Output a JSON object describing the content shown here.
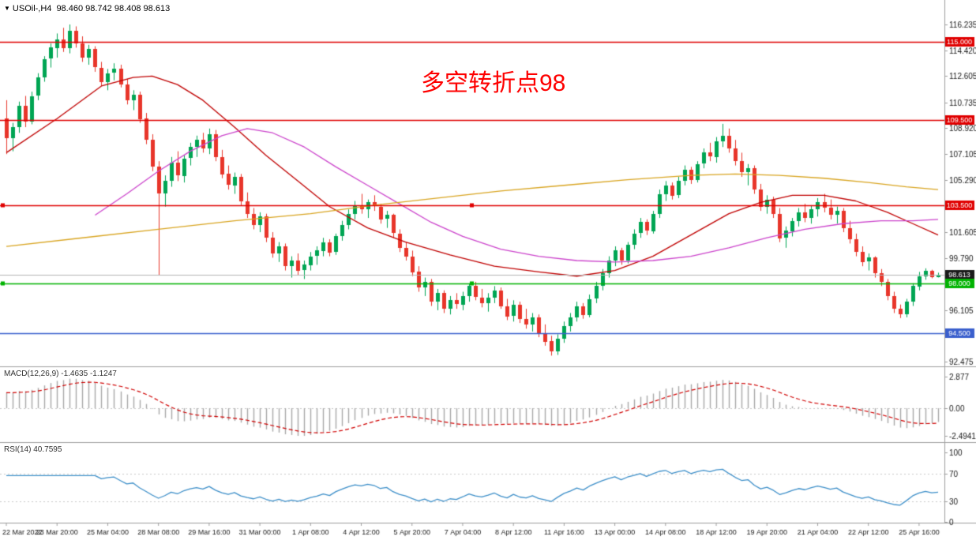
{
  "header": {
    "arrow": "▼",
    "symbol": "USOil-,H4",
    "ohlc": "98.460 98.742 98.408 98.613"
  },
  "annotation": {
    "text": "多空转折点98",
    "color": "#fe0000"
  },
  "indicators": {
    "macd_label": "MACD(12,26,9) -1.4635 -1.1247",
    "rsi_label": "RSI(14) 40.7595"
  },
  "chart_data": {
    "type": "candlestick",
    "symbol": "USOil-",
    "timeframe": "H4",
    "title": "USOil H4 chart with MACD and RSI",
    "ohlc_display": {
      "open": "98.460",
      "high": "98.742",
      "low": "98.408",
      "close": "98.613"
    },
    "price_range": {
      "min": 92.2,
      "max": 117.96
    },
    "macd_range": {
      "min": -2.98,
      "max": 3.63
    },
    "rsi_range": {
      "min": 0,
      "max": 114
    },
    "price_axis": {
      "ticks": [
        116.235,
        114.42,
        112.605,
        110.735,
        108.92,
        107.105,
        105.29,
        101.605,
        99.79,
        96.105,
        92.475
      ],
      "badges": [
        {
          "label": "115.000",
          "price": 115.0,
          "color_key": "hline_red"
        },
        {
          "label": "109.500",
          "price": 109.5,
          "color_key": "hline_red"
        },
        {
          "label": "103.500",
          "price": 103.5,
          "color_key": "hline_red"
        },
        {
          "label": "98.613",
          "price": 98.613,
          "color_key": "last_badge"
        },
        {
          "label": "98.000",
          "price": 98.0,
          "color_key": "hline_green"
        },
        {
          "label": "94.500",
          "price": 94.5,
          "color_key": "hline_blue"
        }
      ]
    },
    "hlines": [
      {
        "price": 115.0,
        "label": "115.000",
        "color_key": "hline_red",
        "anchor": false
      },
      {
        "price": 109.5,
        "label": "109.500",
        "color_key": "hline_red",
        "anchor": false
      },
      {
        "price": 103.5,
        "label": "103.500",
        "color_key": "hline_red",
        "anchor": true
      },
      {
        "price": 98.0,
        "label": "98.000",
        "color_key": "hline_green",
        "anchor": true
      },
      {
        "price": 94.5,
        "label": "94.500",
        "color_key": "hline_blue",
        "anchor": false
      }
    ],
    "bid_line_price": 98.613,
    "x_labels": [
      "22 Mar 2022",
      "23 Mar 20:00",
      "25 Mar 04:00",
      "28 Mar 08:00",
      "29 Mar 16:00",
      "31 Mar 00:00",
      "1 Apr 08:00",
      "4 Apr 12:00",
      "5 Apr 20:00",
      "7 Apr 04:00",
      "8 Apr 12:00",
      "11 Apr 16:00",
      "13 Apr 00:00",
      "14 Apr 08:00",
      "18 Apr 12:00",
      "19 Apr 20:00",
      "21 Apr 04:00",
      "22 Apr 12:00",
      "25 Apr 16:00"
    ],
    "candles": [
      [
        109.6,
        110.9,
        107.1,
        108.2
      ],
      [
        108.2,
        109.3,
        107.3,
        109.0
      ],
      [
        109.0,
        110.8,
        108.6,
        110.5
      ],
      [
        110.5,
        111.2,
        109.0,
        109.4
      ],
      [
        109.4,
        111.5,
        109.2,
        111.2
      ],
      [
        111.2,
        112.8,
        110.9,
        112.5
      ],
      [
        112.5,
        114.0,
        112.2,
        113.8
      ],
      [
        113.8,
        114.9,
        113.2,
        114.6
      ],
      [
        114.6,
        115.6,
        113.9,
        115.2
      ],
      [
        115.2,
        116.0,
        114.3,
        114.6
      ],
      [
        114.6,
        116.235,
        114.2,
        115.8
      ],
      [
        115.8,
        116.1,
        114.6,
        114.9
      ],
      [
        114.9,
        115.4,
        113.6,
        113.9
      ],
      [
        113.9,
        114.8,
        113.4,
        114.5
      ],
      [
        114.5,
        114.7,
        112.9,
        113.2
      ],
      [
        113.2,
        113.6,
        111.9,
        112.2
      ],
      [
        112.2,
        113.1,
        111.6,
        112.8
      ],
      [
        112.8,
        113.5,
        112.3,
        113.1
      ],
      [
        113.1,
        113.4,
        111.8,
        112.0
      ],
      [
        112.0,
        112.4,
        110.6,
        110.9
      ],
      [
        110.9,
        111.6,
        110.2,
        111.3
      ],
      [
        111.3,
        111.5,
        109.3,
        109.6
      ],
      [
        109.6,
        110.0,
        107.8,
        108.1
      ],
      [
        108.1,
        108.5,
        105.9,
        106.2
      ],
      [
        106.2,
        106.6,
        98.6,
        104.3
      ],
      [
        104.3,
        105.6,
        103.4,
        105.2
      ],
      [
        105.2,
        106.9,
        104.8,
        106.5
      ],
      [
        106.5,
        107.3,
        105.2,
        105.6
      ],
      [
        105.6,
        107.0,
        105.1,
        106.8
      ],
      [
        106.8,
        107.9,
        106.3,
        107.6
      ],
      [
        107.6,
        108.4,
        106.9,
        108.1
      ],
      [
        108.1,
        108.6,
        107.2,
        107.5
      ],
      [
        107.5,
        108.9,
        107.1,
        108.5
      ],
      [
        108.5,
        108.8,
        106.6,
        106.9
      ],
      [
        106.9,
        107.4,
        105.4,
        105.7
      ],
      [
        105.7,
        106.3,
        104.6,
        104.9
      ],
      [
        104.9,
        105.8,
        104.3,
        105.5
      ],
      [
        105.5,
        105.7,
        103.5,
        103.8
      ],
      [
        103.8,
        104.4,
        102.6,
        102.9
      ],
      [
        102.9,
        103.3,
        101.8,
        102.1
      ],
      [
        102.1,
        103.0,
        101.6,
        102.7
      ],
      [
        102.7,
        102.9,
        100.9,
        101.2
      ],
      [
        101.2,
        101.6,
        99.8,
        100.1
      ],
      [
        100.1,
        100.9,
        99.5,
        100.6
      ],
      [
        100.6,
        100.8,
        98.9,
        99.2
      ],
      [
        99.2,
        99.9,
        98.4,
        99.6
      ],
      [
        99.6,
        100.1,
        98.6,
        98.9
      ],
      [
        98.9,
        99.6,
        98.3,
        99.3
      ],
      [
        99.3,
        100.2,
        98.9,
        99.9
      ],
      [
        99.9,
        100.6,
        99.3,
        100.3
      ],
      [
        100.3,
        101.2,
        99.9,
        100.9
      ],
      [
        100.9,
        101.1,
        99.9,
        100.2
      ],
      [
        100.2,
        101.5,
        100.0,
        101.3
      ],
      [
        101.3,
        102.4,
        101.0,
        102.1
      ],
      [
        102.1,
        103.2,
        101.8,
        102.9
      ],
      [
        102.9,
        103.8,
        102.5,
        103.5
      ],
      [
        103.5,
        104.3,
        102.9,
        103.2
      ],
      [
        103.2,
        103.9,
        102.6,
        103.7
      ],
      [
        103.7,
        104.2,
        103.1,
        103.4
      ],
      [
        103.4,
        103.6,
        102.2,
        102.5
      ],
      [
        102.5,
        103.1,
        101.9,
        102.8
      ],
      [
        102.8,
        102.9,
        101.2,
        101.5
      ],
      [
        101.5,
        101.8,
        100.2,
        100.5
      ],
      [
        100.5,
        100.9,
        99.6,
        99.9
      ],
      [
        99.9,
        100.3,
        98.5,
        98.8
      ],
      [
        98.8,
        99.2,
        97.4,
        97.7
      ],
      [
        97.7,
        98.4,
        97.1,
        98.1
      ],
      [
        98.1,
        98.3,
        96.4,
        96.7
      ],
      [
        96.7,
        97.6,
        96.1,
        97.3
      ],
      [
        97.3,
        97.5,
        95.9,
        96.2
      ],
      [
        96.2,
        97.1,
        95.8,
        96.8
      ],
      [
        96.8,
        97.3,
        96.2,
        96.5
      ],
      [
        96.5,
        97.4,
        96.1,
        97.1
      ],
      [
        97.1,
        98.0,
        96.7,
        97.8
      ],
      [
        97.8,
        98.1,
        96.8,
        97.0
      ],
      [
        97.0,
        97.6,
        96.3,
        96.6
      ],
      [
        96.6,
        97.3,
        96.0,
        97.0
      ],
      [
        97.0,
        97.8,
        96.6,
        97.5
      ],
      [
        97.5,
        97.7,
        96.2,
        96.4
      ],
      [
        96.4,
        96.9,
        95.4,
        95.7
      ],
      [
        95.7,
        96.8,
        95.3,
        96.5
      ],
      [
        96.5,
        96.7,
        95.2,
        95.5
      ],
      [
        95.5,
        96.2,
        94.8,
        95.1
      ],
      [
        95.1,
        95.9,
        94.6,
        95.6
      ],
      [
        95.6,
        95.8,
        94.2,
        94.5
      ],
      [
        94.5,
        95.1,
        93.6,
        93.9
      ],
      [
        93.9,
        94.3,
        92.9,
        93.2
      ],
      [
        93.2,
        94.4,
        92.95,
        94.1
      ],
      [
        94.1,
        95.3,
        93.8,
        95.0
      ],
      [
        95.0,
        95.9,
        94.6,
        95.6
      ],
      [
        95.6,
        96.7,
        95.3,
        96.4
      ],
      [
        96.4,
        96.6,
        95.5,
        95.8
      ],
      [
        95.8,
        97.2,
        95.6,
        96.9
      ],
      [
        96.9,
        98.1,
        96.6,
        97.8
      ],
      [
        97.8,
        99.0,
        97.5,
        98.7
      ],
      [
        98.7,
        99.9,
        98.4,
        99.6
      ],
      [
        99.6,
        100.6,
        99.2,
        100.3
      ],
      [
        100.3,
        100.5,
        99.3,
        99.6
      ],
      [
        99.6,
        100.9,
        99.4,
        100.7
      ],
      [
        100.7,
        101.8,
        100.4,
        101.5
      ],
      [
        101.5,
        102.6,
        101.2,
        102.3
      ],
      [
        102.3,
        102.5,
        101.4,
        101.7
      ],
      [
        101.7,
        103.1,
        101.5,
        102.9
      ],
      [
        102.9,
        104.6,
        102.6,
        104.3
      ],
      [
        104.3,
        105.2,
        103.8,
        104.9
      ],
      [
        104.9,
        105.1,
        103.9,
        104.2
      ],
      [
        104.2,
        105.5,
        104.0,
        105.2
      ],
      [
        105.2,
        106.3,
        104.9,
        106.0
      ],
      [
        106.0,
        106.2,
        105.0,
        105.3
      ],
      [
        105.3,
        106.6,
        105.1,
        106.4
      ],
      [
        106.4,
        107.5,
        106.1,
        107.2
      ],
      [
        107.2,
        107.9,
        106.6,
        106.9
      ],
      [
        106.9,
        108.3,
        106.5,
        108.0
      ],
      [
        108.0,
        109.23,
        107.6,
        108.4
      ],
      [
        108.4,
        108.9,
        107.2,
        107.5
      ],
      [
        107.5,
        108.1,
        106.3,
        106.6
      ],
      [
        106.6,
        107.2,
        105.5,
        105.8
      ],
      [
        105.8,
        106.4,
        104.9,
        106.1
      ],
      [
        106.1,
        106.3,
        104.3,
        104.6
      ],
      [
        104.6,
        105.0,
        103.1,
        103.4
      ],
      [
        103.4,
        104.2,
        102.9,
        103.9
      ],
      [
        103.9,
        104.1,
        102.6,
        102.9
      ],
      [
        102.9,
        103.3,
        100.9,
        101.2
      ],
      [
        101.2,
        102.0,
        100.5,
        101.7
      ],
      [
        101.7,
        102.6,
        101.3,
        102.4
      ],
      [
        102.4,
        103.3,
        102.0,
        103.0
      ],
      [
        103.0,
        103.6,
        102.3,
        102.6
      ],
      [
        102.6,
        103.5,
        102.2,
        103.2
      ],
      [
        103.2,
        104.0,
        102.7,
        103.7
      ],
      [
        103.7,
        104.3,
        103.0,
        103.3
      ],
      [
        103.3,
        103.9,
        102.5,
        102.8
      ],
      [
        102.8,
        103.4,
        102.2,
        103.1
      ],
      [
        103.1,
        103.3,
        101.6,
        101.9
      ],
      [
        101.9,
        102.4,
        100.8,
        101.1
      ],
      [
        101.1,
        101.5,
        99.9,
        100.2
      ],
      [
        100.2,
        100.6,
        99.2,
        99.5
      ],
      [
        99.5,
        100.1,
        98.9,
        99.8
      ],
      [
        99.8,
        99.9,
        98.4,
        98.7
      ],
      [
        98.7,
        99.0,
        97.8,
        98.1
      ],
      [
        98.1,
        98.3,
        96.8,
        97.1
      ],
      [
        97.1,
        97.4,
        95.9,
        96.2
      ],
      [
        96.2,
        96.5,
        95.55,
        95.8
      ],
      [
        95.8,
        96.9,
        95.6,
        96.7
      ],
      [
        96.7,
        98.0,
        96.4,
        97.8
      ],
      [
        97.8,
        98.8,
        97.5,
        98.5
      ],
      [
        98.5,
        99.05,
        98.25,
        98.9
      ],
      [
        98.9,
        98.95,
        98.35,
        98.46
      ],
      [
        98.46,
        98.742,
        98.408,
        98.613
      ]
    ],
    "ma_lines": [
      {
        "name": "ma-fast-red",
        "color_key": "ma_fast",
        "points": [
          [
            0,
            107.2
          ],
          [
            8,
            109.6
          ],
          [
            15,
            111.9
          ],
          [
            20,
            112.5
          ],
          [
            23,
            112.6
          ],
          [
            27,
            112.0
          ],
          [
            31,
            110.9
          ],
          [
            36,
            109.0
          ],
          [
            41,
            107.0
          ],
          [
            46,
            105.2
          ],
          [
            51,
            103.4
          ],
          [
            57,
            101.9
          ],
          [
            63,
            100.9
          ],
          [
            70,
            100.0
          ],
          [
            77,
            99.2
          ],
          [
            84,
            98.8
          ],
          [
            90,
            98.5
          ],
          [
            96,
            98.9
          ],
          [
            102,
            99.9
          ],
          [
            108,
            101.4
          ],
          [
            114,
            102.9
          ],
          [
            119,
            103.7
          ],
          [
            124,
            104.2
          ],
          [
            129,
            104.2
          ],
          [
            134,
            103.8
          ],
          [
            139,
            103.0
          ],
          [
            143,
            102.2
          ],
          [
            147,
            101.4
          ]
        ]
      },
      {
        "name": "ma-mid-magenta",
        "color_key": "ma_mid",
        "points": [
          [
            14,
            102.8
          ],
          [
            19,
            104.3
          ],
          [
            24,
            105.9
          ],
          [
            29,
            107.3
          ],
          [
            34,
            108.4
          ],
          [
            38,
            108.9
          ],
          [
            42,
            108.6
          ],
          [
            47,
            107.6
          ],
          [
            52,
            106.2
          ],
          [
            57,
            104.9
          ],
          [
            62,
            103.6
          ],
          [
            67,
            102.3
          ],
          [
            72,
            101.3
          ],
          [
            78,
            100.4
          ],
          [
            84,
            99.9
          ],
          [
            90,
            99.6
          ],
          [
            96,
            99.5
          ],
          [
            102,
            99.6
          ],
          [
            108,
            99.9
          ],
          [
            114,
            100.5
          ],
          [
            120,
            101.2
          ],
          [
            126,
            101.8
          ],
          [
            132,
            102.2
          ],
          [
            138,
            102.4
          ],
          [
            143,
            102.4
          ],
          [
            147,
            102.5
          ]
        ]
      },
      {
        "name": "ma-slow-orange",
        "color_key": "ma_slow",
        "points": [
          [
            0,
            100.6
          ],
          [
            12,
            101.2
          ],
          [
            24,
            101.8
          ],
          [
            36,
            102.4
          ],
          [
            48,
            102.9
          ],
          [
            58,
            103.5
          ],
          [
            68,
            104.0
          ],
          [
            78,
            104.5
          ],
          [
            88,
            104.9
          ],
          [
            98,
            105.3
          ],
          [
            108,
            105.6
          ],
          [
            115,
            105.7
          ],
          [
            122,
            105.6
          ],
          [
            129,
            105.4
          ],
          [
            136,
            105.1
          ],
          [
            142,
            104.8
          ],
          [
            147,
            104.6
          ]
        ]
      }
    ],
    "macd": {
      "params": "12,26,9",
      "main_value": -1.4635,
      "signal_value": -1.1247,
      "axis_ticks": [
        "2.877",
        "0.00",
        "-2.4941"
      ]
    },
    "rsi": {
      "period": 14,
      "value": 40.7595,
      "axis_ticks": [
        "100",
        "70",
        "30",
        "0"
      ],
      "levels": [
        70,
        30
      ]
    },
    "colors": {
      "up": "#00a553",
      "down": "#e8352a",
      "ma_fast": "#c00000",
      "ma_mid": "#cc44cc",
      "ma_slow": "#d9a521",
      "macd_hist": "#a8a8a8",
      "macd_signal": "#d00000",
      "rsi": "#3d8fc9",
      "grid": "#c8c8c8",
      "separator": "#9e9e9e",
      "axis_text": "#1a1a1a",
      "bid_line": "#b4b4b4",
      "hline_red": "#e00000",
      "hline_green": "#00b300",
      "hline_blue": "#3a5fcd",
      "last_badge": "#1a1a1a"
    }
  }
}
